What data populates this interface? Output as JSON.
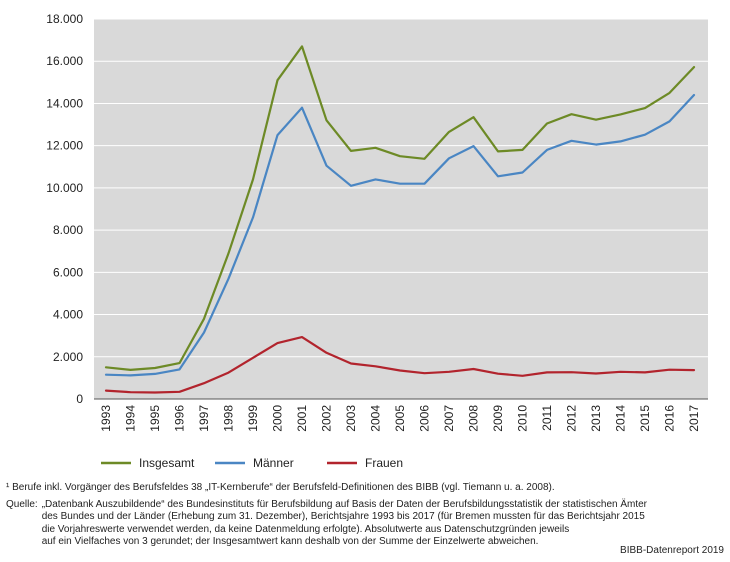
{
  "chart_data": {
    "type": "line",
    "categories": [
      "1993",
      "1994",
      "1995",
      "1996",
      "1997",
      "1998",
      "1999",
      "2000",
      "2001",
      "2002",
      "2003",
      "2004",
      "2005",
      "2006",
      "2007",
      "2008",
      "2009",
      "2010",
      "2011",
      "2012",
      "2013",
      "2014",
      "2015",
      "2016",
      "2017"
    ],
    "series": [
      {
        "name": "Insgesamt",
        "color": "#6d8a26",
        "values": [
          1500,
          1380,
          1470,
          1700,
          3800,
          6900,
          10400,
          15100,
          16700,
          13200,
          11750,
          11900,
          11500,
          11380,
          12650,
          13350,
          11730,
          11800,
          13050,
          13490,
          13230,
          13480,
          13780,
          14500,
          15720
        ]
      },
      {
        "name": "Männer",
        "color": "#4a86c3",
        "values": [
          1150,
          1120,
          1190,
          1400,
          3150,
          5700,
          8600,
          12500,
          13800,
          11050,
          10100,
          10400,
          10200,
          10200,
          11400,
          11980,
          10550,
          10730,
          11800,
          12230,
          12050,
          12200,
          12520,
          13150,
          14400
        ]
      },
      {
        "name": "Frauen",
        "color": "#b2242d",
        "values": [
          400,
          320,
          310,
          340,
          750,
          1250,
          1950,
          2650,
          2930,
          2190,
          1680,
          1550,
          1350,
          1220,
          1290,
          1420,
          1200,
          1100,
          1260,
          1270,
          1210,
          1290,
          1260,
          1390,
          1370
        ]
      }
    ],
    "y_ticks": [
      "0",
      "2.000",
      "4.000",
      "6.000",
      "8.000",
      "10.000",
      "12.000",
      "14.000",
      "16.000",
      "18.000"
    ],
    "ylim": [
      0,
      18000
    ],
    "grid": true,
    "legend": "bottom"
  },
  "notes": {
    "footnote": "¹ Berufe inkl. Vorgänger des Berufsfeldes 38 „IT-Kernberufe“ der Berufsfeld-Definitionen des BIBB (vgl. Tiemann u. a. 2008).",
    "source_prefix": "Quelle:",
    "source_line1": "„Datenbank Auszubildende“ des Bundesinstituts für Berufsbildung auf Basis der Daten der Berufsbildungsstatistik der statistischen Ämter",
    "source_line2": "des Bundes und der Länder (Erhebung zum 31. Dezember), Berichtsjahre 1993 bis 2017 (für Bremen mussten für das Berichtsjahr 2015",
    "source_line3": "die Vorjahreswerte verwendet werden, da keine Datenmeldung erfolgte).  Absolutwerte aus Datenschutzgründen jeweils",
    "source_line4": "auf ein Vielfaches von 3 gerundet; der Insgesamtwert kann deshalb von der Summe der Einzelwerte abweichen.",
    "credit": "BIBB-Datenreport 2019"
  }
}
